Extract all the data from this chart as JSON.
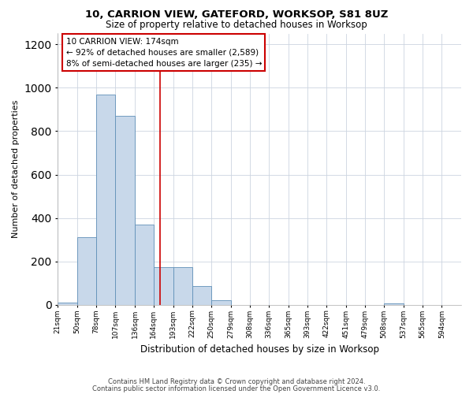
{
  "title1": "10, CARRION VIEW, GATEFORD, WORKSOP, S81 8UZ",
  "title2": "Size of property relative to detached houses in Worksop",
  "xlabel": "Distribution of detached houses by size in Worksop",
  "ylabel": "Number of detached properties",
  "footer1": "Contains HM Land Registry data © Crown copyright and database right 2024.",
  "footer2": "Contains public sector information licensed under the Open Government Licence v3.0.",
  "annotation_line1": "10 CARRION VIEW: 174sqm",
  "annotation_line2": "← 92% of detached houses are smaller (2,589)",
  "annotation_line3": "8% of semi-detached houses are larger (235) →",
  "bar_color": "#c8d8ea",
  "bar_edge_color": "#6090b8",
  "vline_color": "#cc0000",
  "vline_x": 174,
  "categories": [
    "21sqm",
    "50sqm",
    "78sqm",
    "107sqm",
    "136sqm",
    "164sqm",
    "193sqm",
    "222sqm",
    "250sqm",
    "279sqm",
    "308sqm",
    "336sqm",
    "365sqm",
    "393sqm",
    "422sqm",
    "451sqm",
    "479sqm",
    "508sqm",
    "537sqm",
    "565sqm",
    "594sqm"
  ],
  "bin_edges": [
    21,
    50,
    78,
    107,
    136,
    164,
    193,
    222,
    250,
    279,
    308,
    336,
    365,
    393,
    422,
    451,
    479,
    508,
    537,
    565,
    594,
    623
  ],
  "values": [
    10,
    310,
    970,
    870,
    370,
    175,
    175,
    85,
    22,
    0,
    0,
    0,
    0,
    0,
    0,
    0,
    0,
    5,
    0,
    0,
    0
  ],
  "ylim": [
    0,
    1250
  ],
  "yticks": [
    0,
    200,
    400,
    600,
    800,
    1000,
    1200
  ],
  "bg_color": "#ffffff",
  "grid_color": "#ccd4e0"
}
